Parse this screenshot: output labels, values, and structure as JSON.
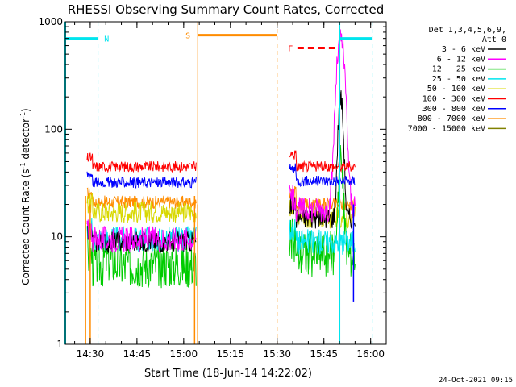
{
  "chart_data": {
    "type": "line",
    "title": "RHESSI Observing Summary Count Rates, Corrected",
    "xlabel": "Start Time (18-Jun-14 14:22:02)",
    "ylabel": "Corrected Count Rate (s⁻¹ detector⁻¹)",
    "x_ticks": [
      "14:30",
      "14:45",
      "15:00",
      "15:15",
      "15:30",
      "15:45",
      "16:00"
    ],
    "y_ticks": [
      "1",
      "10",
      "100",
      "1000"
    ],
    "y_scale": "log",
    "ylim": [
      1,
      1000
    ],
    "xlim_minutes_from_start": [
      0,
      103
    ],
    "legend_title": [
      "Det 1,3,4,5,6,9,",
      "Att 0"
    ],
    "series": [
      {
        "name": "3 - 6 keV",
        "color": "#000000"
      },
      {
        "name": "6 - 12 keV",
        "color": "#ff00ff"
      },
      {
        "name": "12 - 25 keV",
        "color": "#00cc00"
      },
      {
        "name": "25 - 50 keV",
        "color": "#00e5ee"
      },
      {
        "name": "50 - 100 keV",
        "color": "#d8d800"
      },
      {
        "name": "100 - 300 keV",
        "color": "#ff0000"
      },
      {
        "name": "300 - 800 keV",
        "color": "#0000ff"
      },
      {
        "name": "800 - 7000 keV",
        "color": "#ff8c00"
      },
      {
        "name": "7000 - 15000 keV",
        "color": "#808000"
      }
    ],
    "segments": [
      {
        "t_start": 7,
        "t_end": 42,
        "levels": {
          "3 - 6 keV": 9,
          "6 - 12 keV": 9.5,
          "12 - 25 keV": 5.5,
          "25 - 50 keV": 9.5,
          "50 - 100 keV": 17,
          "100 - 300 keV": 45,
          "300 - 800 keV": 32,
          "800 - 7000 keV": 21
        }
      },
      {
        "t_start": 72,
        "t_end": 93,
        "levels": {
          "3 - 6 keV": 15,
          "6 - 12 keV": 18,
          "12 - 25 keV": 7,
          "25 - 50 keV": 9,
          "50 - 100 keV": 15,
          "100 - 300 keV": 45,
          "300 - 800 keV": 33,
          "800 - 7000 keV": 20
        }
      }
    ],
    "flare_peaks": {
      "3 - 6 keV": 200,
      "6 - 12 keV": 700,
      "12 - 25 keV": 50
    },
    "annotations": [
      {
        "label": "N",
        "color": "#00e5ee",
        "style": "night bars",
        "y_value": 700
      },
      {
        "label": "S",
        "color": "#ff8c00",
        "style": "SAA bar",
        "y_value": 750
      },
      {
        "label": "F",
        "color": "#ff0000",
        "style": "flare dashed bar",
        "y_value": 570
      }
    ],
    "grid": false,
    "legend_placement": "right"
  },
  "footer_date": "24-Oct-2021 09:15"
}
